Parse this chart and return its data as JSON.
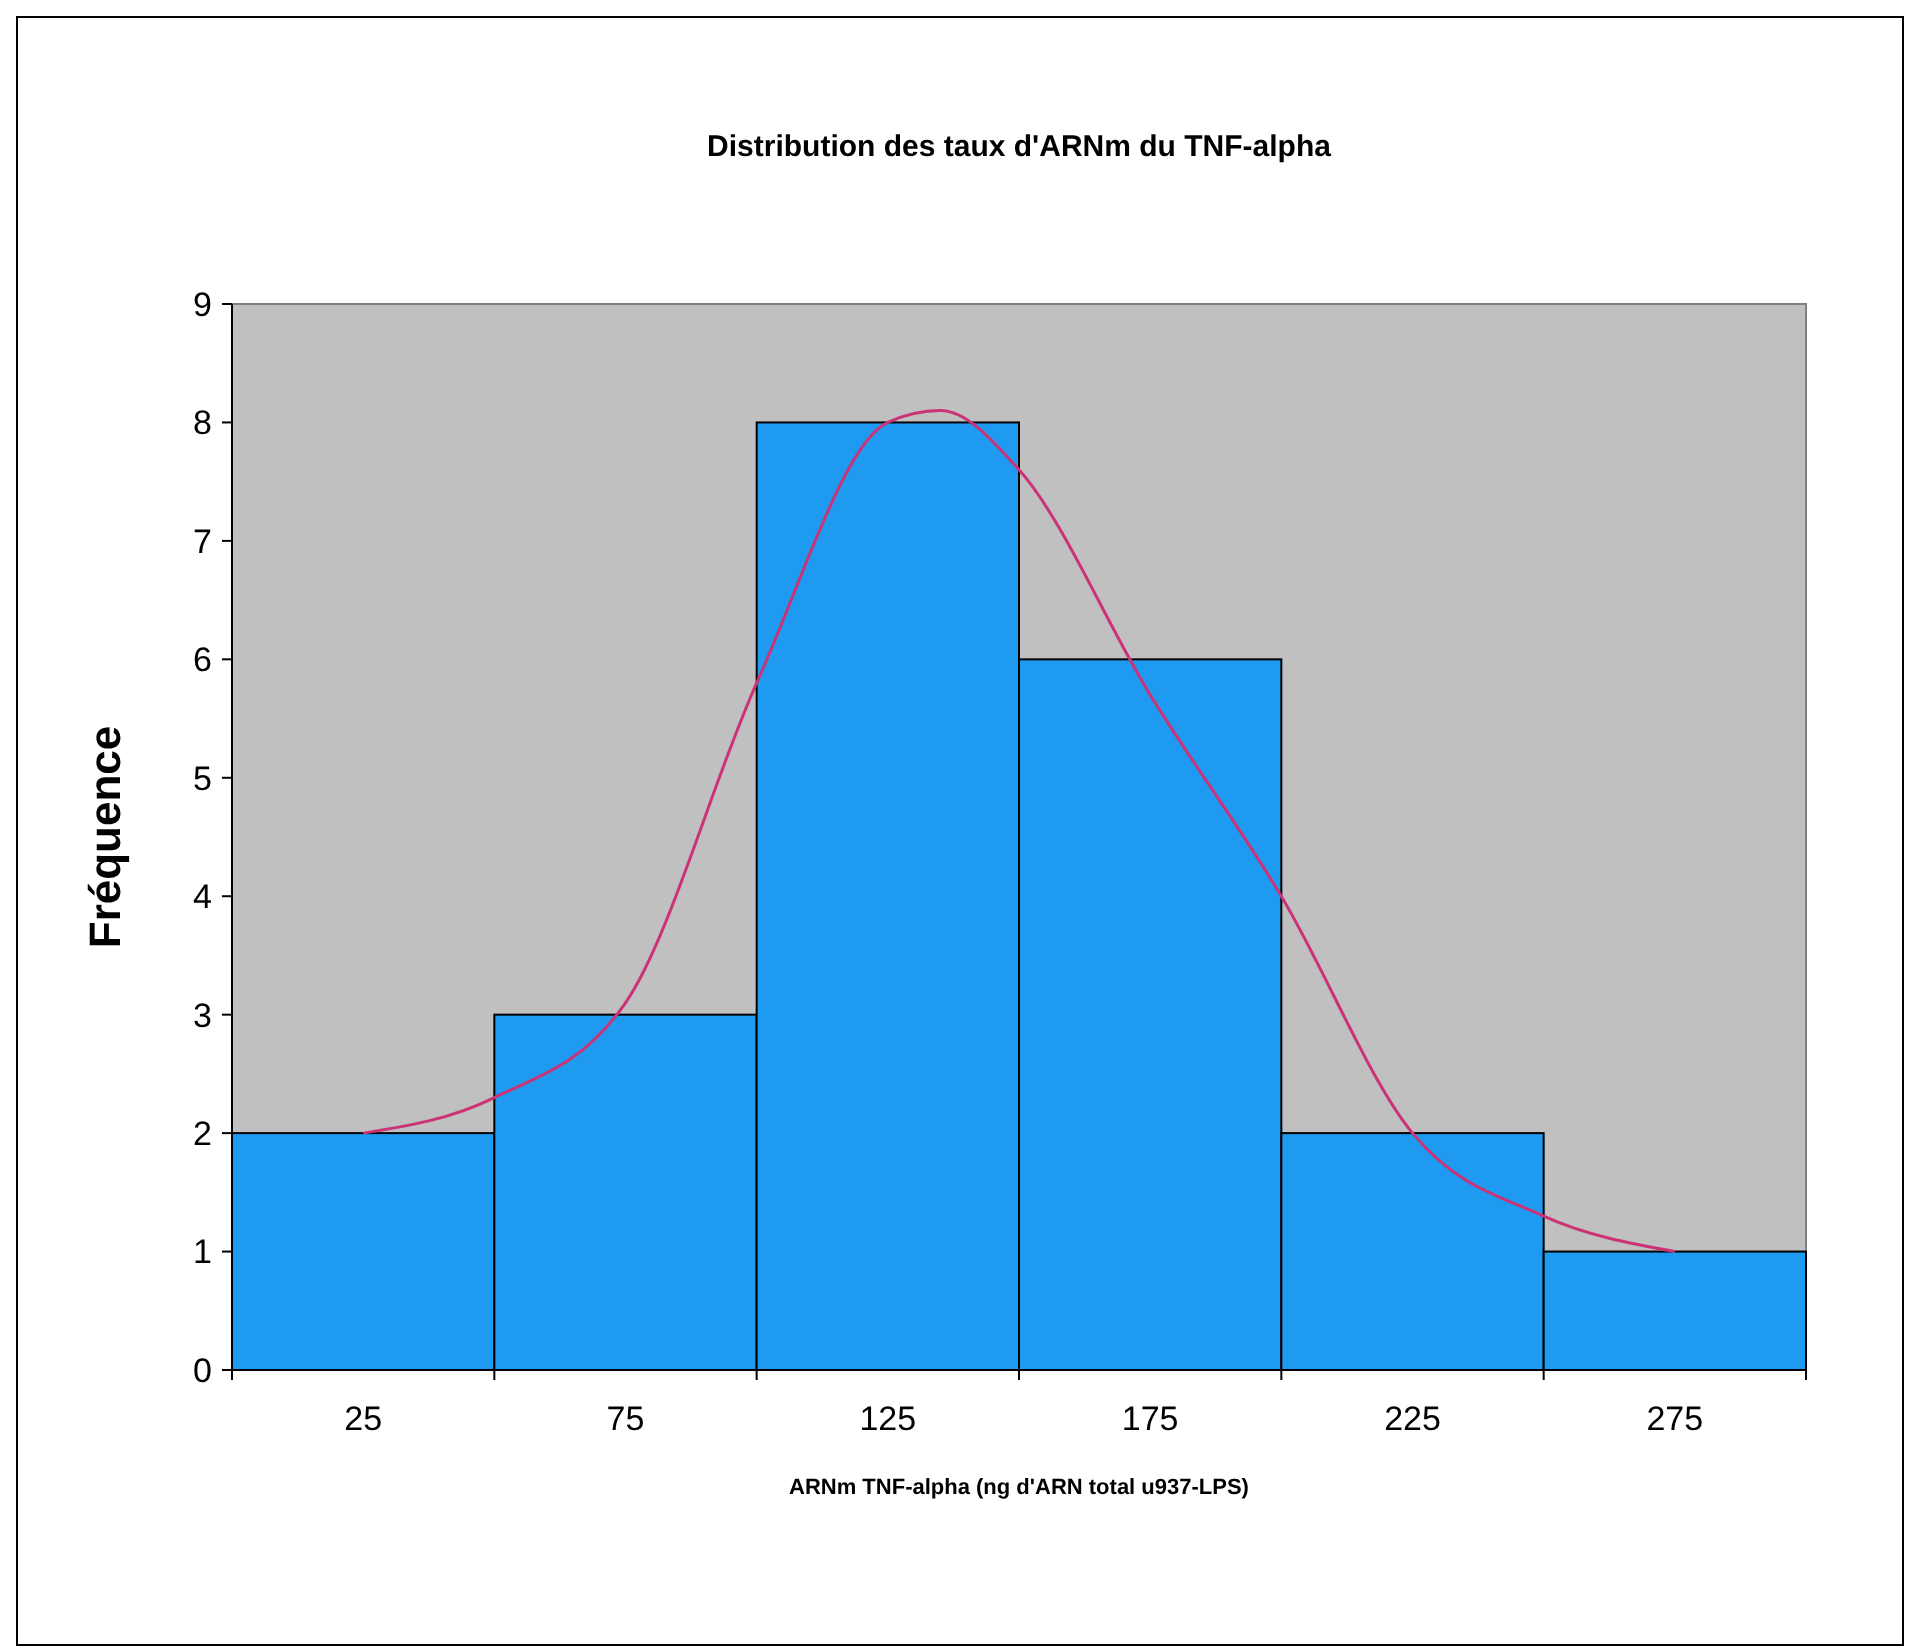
{
  "chart_data": {
    "type": "histogram",
    "title": "Distribution des taux d'ARNm du TNF-alpha",
    "xlabel": "ARNm TNF-alpha (ng d'ARN total u937-LPS)",
    "ylabel": "Fréquence",
    "bins": [
      0,
      50,
      100,
      150,
      200,
      250,
      300
    ],
    "series": [
      {
        "color": "#1e9bf0",
        "values": [
          2,
          3,
          8,
          6,
          2,
          1
        ]
      },
      {
        "type": "line",
        "color": "#cc3377",
        "x": [
          25,
          50,
          75,
          100,
          125,
          135,
          150,
          175,
          200,
          225,
          250,
          275
        ],
        "values": [
          2,
          2.3,
          3.1,
          5.8,
          8,
          8.1,
          7.6,
          5.7,
          4,
          2,
          1.3,
          1
        ]
      }
    ],
    "xlim": [
      0,
      300
    ],
    "xticks": [
      25,
      75,
      125,
      175,
      225,
      275
    ],
    "ylim": [
      0,
      9
    ],
    "yticks": [
      0,
      1,
      2,
      3,
      4,
      5,
      6,
      7,
      8,
      9
    ],
    "grid": false,
    "marker": "none",
    "line_style": "solid"
  }
}
